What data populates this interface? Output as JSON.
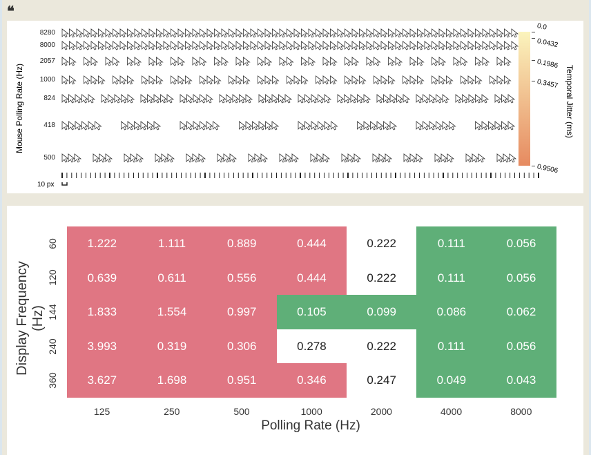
{
  "quote_icon": "quote-icon",
  "top_chart": {
    "ylabel": "Mouse Polling Rate (Hz)",
    "rows": [
      "8280",
      "8000",
      "2057",
      "1000",
      "824",
      "418",
      "500"
    ],
    "scale_label": "10 px",
    "colorbar": {
      "label": "Temporal Jitter (ms)",
      "ticks": [
        "0.0",
        "0.0432",
        "0.1986",
        "0.3457",
        "0.9506"
      ],
      "range": [
        0,
        0.9506
      ],
      "colors": [
        "#fbf4bd",
        "#e68a60"
      ]
    }
  },
  "chart_data": {
    "type": "heatmap",
    "xlabel": "Polling Rate (Hz)",
    "ylabel": "Display Frequency (Hz)",
    "x": [
      "125",
      "250",
      "500",
      "1000",
      "2000",
      "4000",
      "8000"
    ],
    "y": [
      "60",
      "120",
      "144",
      "240",
      "360"
    ],
    "values": [
      [
        "1.222",
        "1.111",
        "0.889",
        "0.444",
        "0.222",
        "0.111",
        "0.056"
      ],
      [
        "0.639",
        "0.611",
        "0.556",
        "0.444",
        "0.222",
        "0.111",
        "0.056"
      ],
      [
        "1.833",
        "1.554",
        "0.997",
        "0.105",
        "0.099",
        "0.086",
        "0.062"
      ],
      [
        "3.993",
        "0.319",
        "0.306",
        "0.278",
        "0.222",
        "0.111",
        "0.056"
      ],
      [
        "3.627",
        "1.698",
        "0.951",
        "0.346",
        "0.247",
        "0.049",
        "0.043"
      ]
    ],
    "categories": [
      [
        "r",
        "r",
        "r",
        "r",
        "w",
        "g",
        "g"
      ],
      [
        "r",
        "r",
        "r",
        "r",
        "w",
        "g",
        "g"
      ],
      [
        "r",
        "r",
        "r",
        "g",
        "g",
        "g",
        "g"
      ],
      [
        "r",
        "r",
        "r",
        "w",
        "w",
        "g",
        "g"
      ],
      [
        "r",
        "r",
        "r",
        "r",
        "w",
        "g",
        "g"
      ]
    ],
    "colors": {
      "r": "#e07683",
      "g": "#5faf78",
      "w": "#ffffff"
    }
  }
}
